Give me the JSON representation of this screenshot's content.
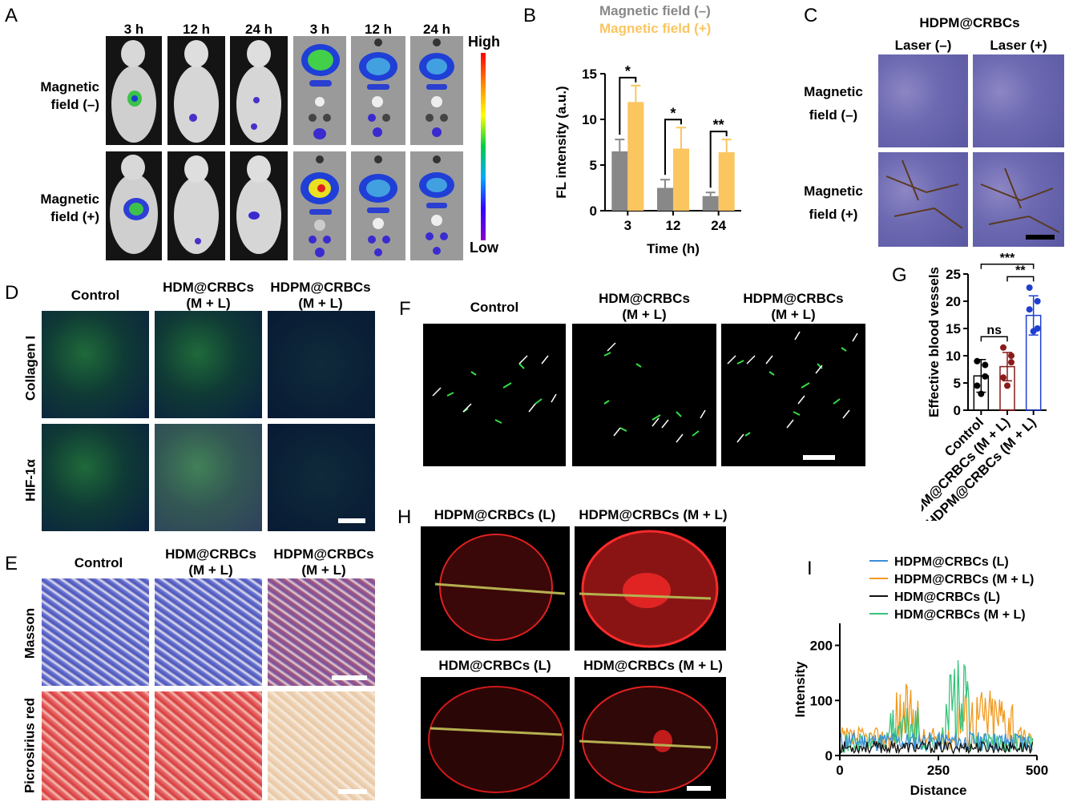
{
  "panels": {
    "A": "A",
    "B": "B",
    "C": "C",
    "D": "D",
    "E": "E",
    "F": "F",
    "G": "G",
    "H": "H",
    "I": "I"
  },
  "panelA": {
    "times": [
      "3 h",
      "12 h",
      "24 h",
      "3 h",
      "12 h",
      "24 h"
    ],
    "row1": "Magnetic field (–)",
    "row2": "Magnetic field (+)",
    "high": "High",
    "low": "Low"
  },
  "panelB": {
    "legend_minus": "Magnetic field (–)",
    "legend_plus": "Magnetic field (+)",
    "colors": {
      "minus": "#888888",
      "plus": "#fbc55f"
    }
  },
  "panelC": {
    "title": "HDPM@CRBCs",
    "col1": "Laser (–)",
    "col2": "Laser (+)",
    "row1a": "Magnetic",
    "row1b": "field (–)",
    "row2a": "Magnetic",
    "row2b": "field (+)"
  },
  "panelD": {
    "cols": [
      "Control",
      "HDM@CRBCs",
      "(M + L)",
      "HDPM@CRBCs",
      "(M + L)"
    ],
    "rows": [
      "Collagen I",
      "HIF-1α"
    ]
  },
  "panelE": {
    "cols": [
      "Control",
      "HDM@CRBCs",
      "(M + L)",
      "HDPM@CRBCs",
      "(M + L)"
    ],
    "rows": [
      "Masson",
      "Picrosirius red"
    ]
  },
  "panelF": {
    "cols": [
      "Control",
      "HDM@CRBCs",
      "(M + L)",
      "HDPM@CRBCs",
      "(M + L)"
    ]
  },
  "panelH": {
    "titles": [
      "HDPM@CRBCs (L)",
      "HDPM@CRBCs (M + L)",
      "HDM@CRBCs (L)",
      "HDM@CRBCs (M + L)"
    ]
  },
  "chart_data": [
    {
      "id": "B",
      "type": "bar",
      "categories": [
        "3",
        "12",
        "24"
      ],
      "series": [
        {
          "name": "Magnetic field (–)",
          "values": [
            6.5,
            2.5,
            1.6
          ],
          "errors": [
            1.3,
            0.9,
            0.4
          ]
        },
        {
          "name": "Magnetic field (+)",
          "values": [
            11.9,
            6.8,
            6.4
          ],
          "errors": [
            1.8,
            2.3,
            1.4
          ]
        }
      ],
      "significance": [
        "*",
        "*",
        "**"
      ],
      "xlabel": "Time (h)",
      "ylabel": "FL intensity (a.u.)",
      "ylim": [
        0,
        15
      ],
      "yticks": [
        0,
        5,
        10,
        15
      ]
    },
    {
      "id": "G",
      "type": "bar",
      "categories": [
        "Control",
        "HDM@CRBCs (M + L)",
        "HDPM@CRBCs (M + L)"
      ],
      "values": [
        6.3,
        8.0,
        17.4
      ],
      "errors": [
        3.0,
        2.6,
        3.6
      ],
      "points": [
        [
          9.0,
          6.2,
          4.5,
          8.3,
          3.0
        ],
        [
          11.5,
          10.0,
          6.0,
          8.8,
          4.5
        ],
        [
          22.5,
          20.0,
          18.5,
          15.0,
          14.5
        ]
      ],
      "colors": [
        "#000000",
        "#8b1a1a",
        "#1f3fd0"
      ],
      "significance": [
        {
          "pair": [
            0,
            1
          ],
          "label": "ns"
        },
        {
          "pair": [
            1,
            2
          ],
          "label": "**"
        },
        {
          "pair": [
            0,
            2
          ],
          "label": "***"
        }
      ],
      "ylabel": "Effective blood vessels",
      "ylim": [
        0,
        25
      ],
      "yticks": [
        0,
        5,
        10,
        15,
        20,
        25
      ]
    },
    {
      "id": "I",
      "type": "line",
      "series": [
        {
          "name": "HDPM@CRBCs (L)",
          "color": "#3a8fd6"
        },
        {
          "name": "HDPM@CRBCs (M + L)",
          "color": "#f29a1f"
        },
        {
          "name": "HDM@CRBCs (L)",
          "color": "#111111"
        },
        {
          "name": "HDM@CRBCs (M + L)",
          "color": "#36c27a"
        }
      ],
      "xlabel": "Distance",
      "ylabel": "Intensity",
      "xlim": [
        0,
        500
      ],
      "ylim": [
        0,
        240
      ],
      "xticks": [
        0,
        250,
        500
      ],
      "yticks": [
        0,
        100,
        200
      ]
    }
  ]
}
